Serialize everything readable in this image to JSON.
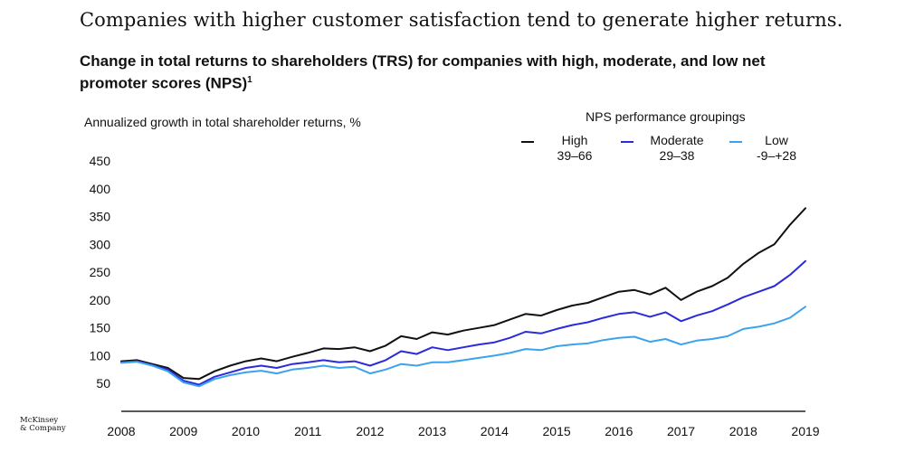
{
  "headline": "Companies with higher customer satisfaction tend to generate higher returns.",
  "subtitle": "Change in total returns to shareholders (TRS) for companies with high, moderate, and low net promoter scores (NPS)",
  "subtitle_footnote": "1",
  "logo": {
    "line1": "McKinsey",
    "line2": "& Company"
  },
  "colors": {
    "high": "#111111",
    "moderate": "#2b2bd9",
    "low": "#3ba3ee"
  },
  "chart_data": {
    "type": "line",
    "ylabel": "Annualized growth in total shareholder returns, %",
    "legend_title": "NPS performance groupings",
    "legend_position": "top-right",
    "ylim": [
      0,
      450
    ],
    "xlim": [
      2008,
      2019
    ],
    "yticks": [
      0,
      50,
      100,
      150,
      200,
      250,
      300,
      350,
      400,
      450
    ],
    "ytick_labels": [
      "",
      "50",
      "100",
      "150",
      "200",
      "250",
      "300",
      "350",
      "400",
      "450"
    ],
    "xticks": [
      "2008",
      "2009",
      "2010",
      "2011",
      "2012",
      "2013",
      "2014",
      "2015",
      "2016",
      "2017",
      "2018",
      "2019"
    ],
    "x": [
      2008.0,
      2008.25,
      2008.5,
      2008.75,
      2009.0,
      2009.25,
      2009.5,
      2009.75,
      2010.0,
      2010.25,
      2010.5,
      2010.75,
      2011.0,
      2011.25,
      2011.5,
      2011.75,
      2012.0,
      2012.25,
      2012.5,
      2012.75,
      2013.0,
      2013.25,
      2013.5,
      2013.75,
      2014.0,
      2014.25,
      2014.5,
      2014.75,
      2015.0,
      2015.25,
      2015.5,
      2015.75,
      2016.0,
      2016.25,
      2016.5,
      2016.75,
      2017.0,
      2017.25,
      2017.5,
      2017.75,
      2018.0,
      2018.25,
      2018.5,
      2018.75,
      2019.0
    ],
    "series": [
      {
        "name": "High",
        "range": "39–66",
        "color_key": "high",
        "values": [
          90,
          92,
          85,
          78,
          60,
          58,
          72,
          82,
          90,
          95,
          90,
          98,
          105,
          113,
          112,
          115,
          108,
          118,
          135,
          130,
          142,
          138,
          145,
          150,
          155,
          165,
          175,
          172,
          182,
          190,
          195,
          205,
          215,
          218,
          210,
          222,
          200,
          215,
          225,
          240,
          265,
          285,
          300,
          335,
          365
        ]
      },
      {
        "name": "Moderate",
        "range": "29–38",
        "color_key": "moderate",
        "values": [
          88,
          90,
          83,
          75,
          55,
          48,
          62,
          70,
          78,
          82,
          78,
          85,
          88,
          92,
          88,
          90,
          82,
          92,
          108,
          103,
          115,
          110,
          115,
          120,
          124,
          132,
          143,
          140,
          148,
          155,
          160,
          168,
          175,
          178,
          170,
          178,
          162,
          172,
          180,
          192,
          205,
          215,
          225,
          245,
          270
        ]
      },
      {
        "name": "Low",
        "range": "-9–+28",
        "color_key": "low",
        "values": [
          87,
          89,
          82,
          72,
          52,
          45,
          58,
          65,
          70,
          73,
          68,
          75,
          78,
          82,
          78,
          80,
          68,
          75,
          85,
          82,
          88,
          88,
          92,
          96,
          100,
          105,
          112,
          110,
          117,
          120,
          122,
          128,
          132,
          134,
          125,
          130,
          120,
          127,
          130,
          135,
          148,
          152,
          158,
          168,
          188
        ]
      }
    ]
  }
}
